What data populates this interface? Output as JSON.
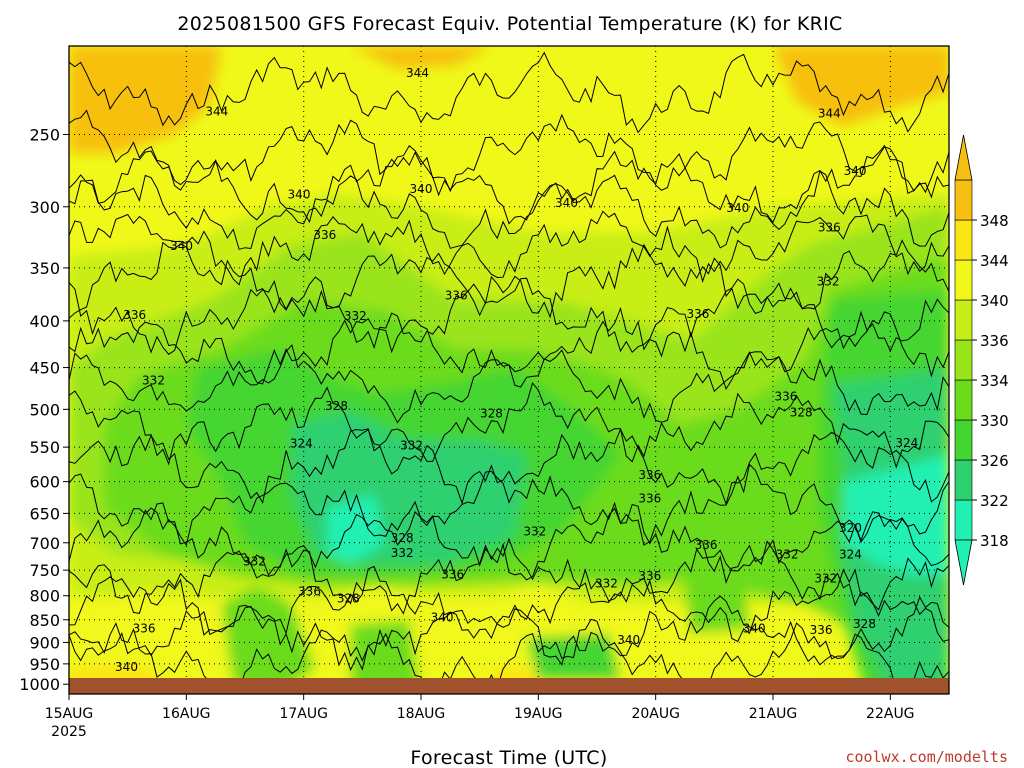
{
  "chart_data": {
    "type": "heatmap",
    "title": "2025081500 GFS Forecast Equiv. Potential Temperature (K) for KRIC",
    "xlabel": "Forecast Time (UTC)",
    "ylabel": "",
    "x_ticks": [
      "15AUG",
      "16AUG",
      "17AUG",
      "18AUG",
      "19AUG",
      "20AUG",
      "21AUG",
      "22AUG"
    ],
    "x_year": "2025",
    "x_range_days": [
      0,
      7.5
    ],
    "y_ticks": [
      250,
      300,
      350,
      400,
      450,
      500,
      550,
      600,
      650,
      700,
      750,
      800,
      850,
      900,
      950,
      1000
    ],
    "y_range_hpa": [
      200,
      1025
    ],
    "y_scale": "log-pressure",
    "colorbar_levels": [
      318,
      322,
      326,
      330,
      334,
      336,
      340,
      344,
      348
    ],
    "colorbar_colors": [
      "#22f0b2",
      "#2ed070",
      "#44d630",
      "#6adc1a",
      "#9ae41a",
      "#c8ee18",
      "#f0f81a",
      "#fbe514",
      "#f7c010"
    ],
    "colorbar_extend": "both",
    "contour_labels": [
      {
        "v": "344",
        "day": 2.97,
        "p": 214
      },
      {
        "v": "344",
        "day": 1.26,
        "p": 236
      },
      {
        "v": "344",
        "day": 6.48,
        "p": 237
      },
      {
        "v": "340",
        "day": 6.7,
        "p": 274
      },
      {
        "v": "340",
        "day": 3.0,
        "p": 287
      },
      {
        "v": "340",
        "day": 1.96,
        "p": 291
      },
      {
        "v": "340",
        "day": 4.24,
        "p": 297
      },
      {
        "v": "340",
        "day": 5.7,
        "p": 301
      },
      {
        "v": "340",
        "day": 0.96,
        "p": 331
      },
      {
        "v": "336",
        "day": 2.18,
        "p": 322
      },
      {
        "v": "336",
        "day": 6.48,
        "p": 316
      },
      {
        "v": "336",
        "day": 3.3,
        "p": 375
      },
      {
        "v": "336",
        "day": 0.56,
        "p": 394
      },
      {
        "v": "336",
        "day": 5.36,
        "p": 393
      },
      {
        "v": "332",
        "day": 6.47,
        "p": 362
      },
      {
        "v": "332",
        "day": 2.44,
        "p": 395
      },
      {
        "v": "332",
        "day": 0.72,
        "p": 465
      },
      {
        "v": "336",
        "day": 6.11,
        "p": 484
      },
      {
        "v": "328",
        "day": 2.28,
        "p": 496
      },
      {
        "v": "328",
        "day": 3.6,
        "p": 505
      },
      {
        "v": "328",
        "day": 6.24,
        "p": 504
      },
      {
        "v": "324",
        "day": 1.98,
        "p": 545
      },
      {
        "v": "332",
        "day": 2.92,
        "p": 548
      },
      {
        "v": "324",
        "day": 7.14,
        "p": 544
      },
      {
        "v": "336",
        "day": 4.95,
        "p": 590
      },
      {
        "v": "336",
        "day": 4.95,
        "p": 626
      },
      {
        "v": "332",
        "day": 3.97,
        "p": 680
      },
      {
        "v": "328",
        "day": 2.84,
        "p": 692
      },
      {
        "v": "332",
        "day": 2.84,
        "p": 718
      },
      {
        "v": "320",
        "day": 6.66,
        "p": 674
      },
      {
        "v": "336",
        "day": 5.43,
        "p": 704
      },
      {
        "v": "332",
        "day": 6.12,
        "p": 721
      },
      {
        "v": "324",
        "day": 6.66,
        "p": 721
      },
      {
        "v": "332",
        "day": 1.58,
        "p": 734
      },
      {
        "v": "336",
        "day": 3.27,
        "p": 758
      },
      {
        "v": "332",
        "day": 4.58,
        "p": 776
      },
      {
        "v": "336",
        "day": 4.95,
        "p": 761
      },
      {
        "v": "332",
        "day": 6.45,
        "p": 766
      },
      {
        "v": "336",
        "day": 2.05,
        "p": 792
      },
      {
        "v": "328",
        "day": 2.38,
        "p": 806
      },
      {
        "v": "340",
        "day": 3.18,
        "p": 845
      },
      {
        "v": "336",
        "day": 0.64,
        "p": 869
      },
      {
        "v": "340",
        "day": 5.84,
        "p": 869
      },
      {
        "v": "336",
        "day": 6.41,
        "p": 872
      },
      {
        "v": "328",
        "day": 6.78,
        "p": 859
      },
      {
        "v": "340",
        "day": 4.77,
        "p": 894
      },
      {
        "v": "340",
        "day": 0.49,
        "p": 958
      }
    ]
  },
  "credit": "coolwx.com/modelts"
}
